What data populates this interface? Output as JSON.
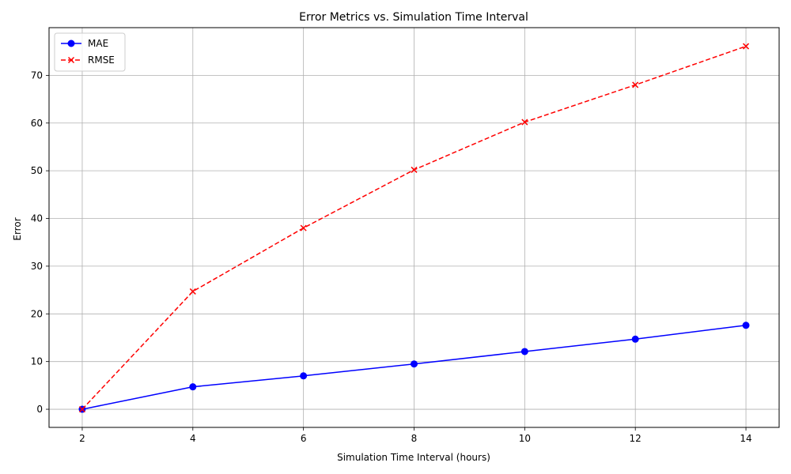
{
  "chart_data": {
    "type": "line",
    "title": "Error Metrics vs. Simulation Time Interval",
    "xlabel": "Simulation Time Interval (hours)",
    "ylabel": "Error",
    "x": [
      2,
      4,
      6,
      8,
      10,
      12,
      14
    ],
    "xticks": [
      "2",
      "4",
      "6",
      "8",
      "10",
      "12",
      "14"
    ],
    "yticks": [
      "0",
      "10",
      "20",
      "30",
      "40",
      "50",
      "60",
      "70"
    ],
    "xlim": [
      1.4,
      14.6
    ],
    "ylim": [
      -3.8,
      80
    ],
    "grid": true,
    "legend_position": "top-left",
    "series": [
      {
        "name": "MAE",
        "values": [
          0,
          4.7,
          7.0,
          9.5,
          12.1,
          14.7,
          17.6
        ],
        "color": "#0000ff",
        "marker": "circle",
        "linestyle": "solid"
      },
      {
        "name": "RMSE",
        "values": [
          0,
          24.7,
          38.0,
          50.2,
          60.2,
          68.0,
          76.1
        ],
        "color": "#ff0000",
        "marker": "x",
        "linestyle": "dashed"
      }
    ]
  }
}
